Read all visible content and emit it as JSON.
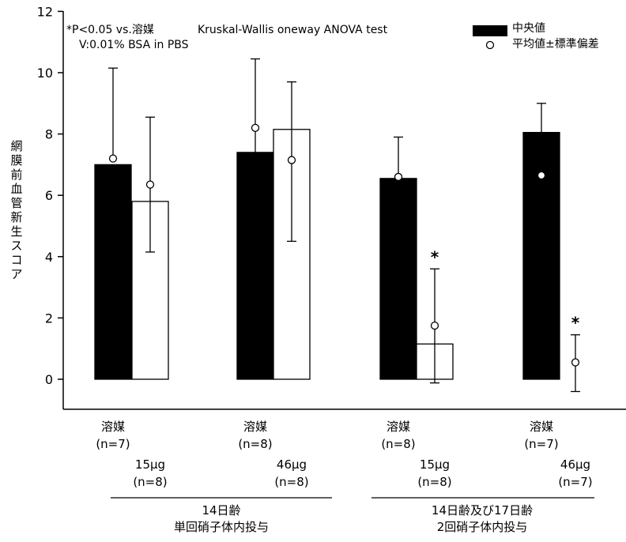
{
  "chart_data": {
    "type": "bar",
    "ylabel": "網膜前血管新生スコア",
    "ylim": [
      0,
      12
    ],
    "yticks": [
      0,
      2,
      4,
      6,
      8,
      10,
      12
    ],
    "annotations": [
      "*P<0.05 vs.溶媒",
      "V:0.01% BSA in PBS",
      "Kruskal-Wallis oneway ANOVA test"
    ],
    "legend": {
      "placement": "top-right",
      "median_label": "中央値",
      "mean_label": "平均値±標準偏差"
    },
    "groups": [
      {
        "label_line1": "14日齢",
        "label_line2": "単回硝子体内投与",
        "categories": [
          {
            "name": "溶媒",
            "n": "(n=7)",
            "median": 7.0,
            "mean": 7.2,
            "sd_upper": 10.15,
            "sd_lower": 7.2,
            "fill": "#000000",
            "sig": ""
          },
          {
            "name": "15μg",
            "n": "(n=8)",
            "median": 5.8,
            "mean": 6.35,
            "sd_upper": 8.55,
            "sd_lower": 4.15,
            "fill": "#ffffff",
            "sig": ""
          },
          {
            "name": "溶媒",
            "n": "(n=8)",
            "median": 7.4,
            "mean": 8.2,
            "sd_upper": 10.45,
            "sd_lower": 7.4,
            "fill": "#000000",
            "sig": ""
          },
          {
            "name": "46μg",
            "n": "(n=8)",
            "median": 8.15,
            "mean": 7.15,
            "sd_upper": 9.7,
            "sd_lower": 4.5,
            "fill": "#ffffff",
            "sig": ""
          }
        ]
      },
      {
        "label_line1": "14日齢及び17日齢",
        "label_line2": "2回硝子体内投与",
        "categories": [
          {
            "name": "溶媒",
            "n": "(n=8)",
            "median": 6.55,
            "mean": 6.6,
            "sd_upper": 7.9,
            "sd_lower": 6.55,
            "fill": "#000000",
            "sig": ""
          },
          {
            "name": "15μg",
            "n": "(n=8)",
            "median": 1.15,
            "mean": 1.75,
            "sd_upper": 3.6,
            "sd_lower": -0.12,
            "fill": "#ffffff",
            "sig": "*"
          },
          {
            "name": "溶媒",
            "n": "(n=7)",
            "median": 8.05,
            "mean": 6.65,
            "sd_upper": 9.0,
            "sd_lower": 8.05,
            "fill": "#000000",
            "sig": ""
          },
          {
            "name": "46μg",
            "n": "(n=7)",
            "median": 0.0,
            "mean": 0.55,
            "sd_upper": 1.45,
            "sd_lower": -0.4,
            "fill": "#ffffff",
            "sig": "*"
          }
        ]
      }
    ]
  }
}
